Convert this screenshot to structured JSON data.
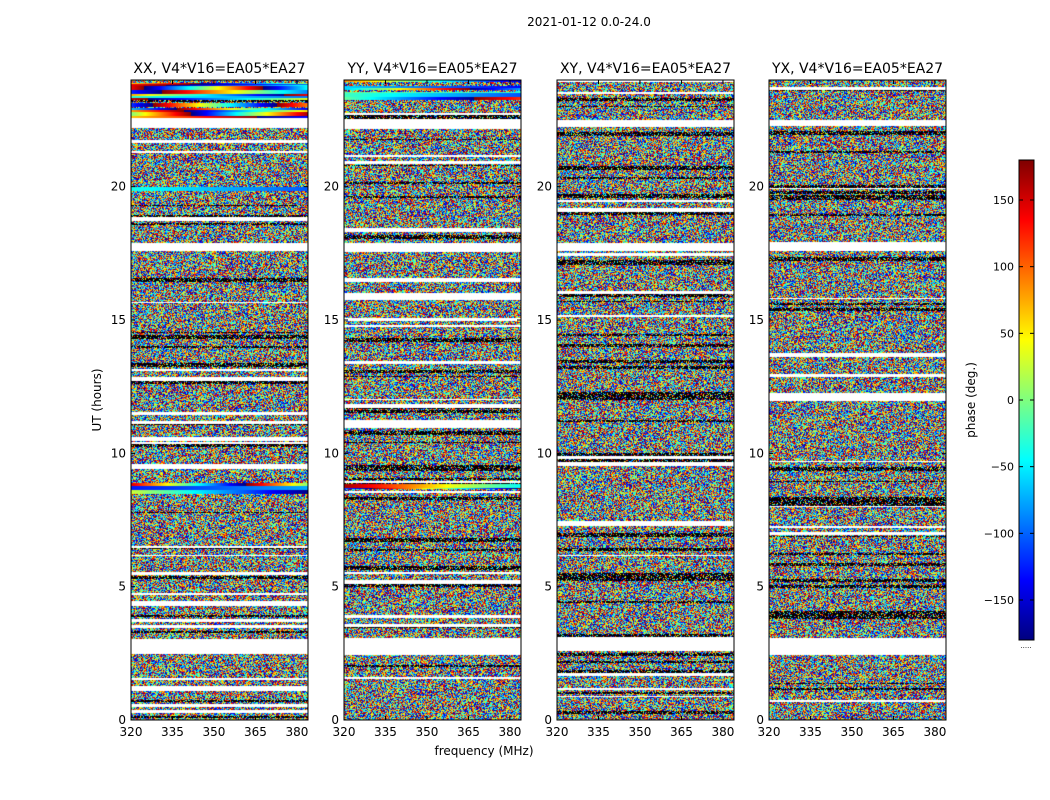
{
  "suptitle": "2021-01-12 0.0-24.0",
  "xlabel": "frequency (MHz)",
  "ylabel": "UT (hours)",
  "colorbar": {
    "label": "phase (deg.)",
    "ticks": [
      150,
      100,
      50,
      0,
      -50,
      -100,
      -150
    ],
    "tick_labels": [
      "150",
      "100",
      "50",
      "0",
      "−50",
      "−100",
      "−150"
    ],
    "range": [
      -180,
      180
    ],
    "colormap": [
      "#00007f",
      "#0000ff",
      "#007fff",
      "#00ffff",
      "#7fff7f",
      "#ffff00",
      "#ff7f00",
      "#ff0000",
      "#7f0000"
    ],
    "footnote": "....."
  },
  "chart_data": [
    {
      "type": "heatmap",
      "title": "XX, V4*V16=EA05*EA27",
      "x_ticks": [
        "320",
        "335",
        "350",
        "365",
        "380"
      ],
      "x_tick_values": [
        320,
        335,
        350,
        365,
        380
      ],
      "xlim": [
        320,
        384
      ],
      "y_ticks": [
        "0",
        "5",
        "10",
        "15",
        "20"
      ],
      "y_tick_values": [
        0,
        5,
        10,
        15,
        20
      ],
      "ylim": [
        0,
        24
      ],
      "z_label": "phase (deg.)",
      "z_range": [
        -180,
        180
      ]
    },
    {
      "type": "heatmap",
      "title": "YY, V4*V16=EA05*EA27",
      "x_ticks": [
        "320",
        "335",
        "350",
        "365",
        "380"
      ],
      "x_tick_values": [
        320,
        335,
        350,
        365,
        380
      ],
      "xlim": [
        320,
        384
      ],
      "y_ticks": [
        "0",
        "5",
        "10",
        "15",
        "20"
      ],
      "y_tick_values": [
        0,
        5,
        10,
        15,
        20
      ],
      "ylim": [
        0,
        24
      ],
      "z_label": "phase (deg.)",
      "z_range": [
        -180,
        180
      ]
    },
    {
      "type": "heatmap",
      "title": "XY, V4*V16=EA05*EA27",
      "x_ticks": [
        "320",
        "335",
        "350",
        "365",
        "380"
      ],
      "x_tick_values": [
        320,
        335,
        350,
        365,
        380
      ],
      "xlim": [
        320,
        384
      ],
      "y_ticks": [
        "0",
        "5",
        "10",
        "15",
        "20"
      ],
      "y_tick_values": [
        0,
        5,
        10,
        15,
        20
      ],
      "ylim": [
        0,
        24
      ],
      "z_label": "phase (deg.)",
      "z_range": [
        -180,
        180
      ]
    },
    {
      "type": "heatmap",
      "title": "YX, V4*V16=EA05*EA27",
      "x_ticks": [
        "320",
        "335",
        "350",
        "365",
        "380"
      ],
      "x_tick_values": [
        320,
        335,
        350,
        365,
        380
      ],
      "xlim": [
        320,
        384
      ],
      "y_ticks": [
        "0",
        "5",
        "10",
        "15",
        "20"
      ],
      "y_tick_values": [
        0,
        5,
        10,
        15,
        20
      ],
      "ylim": [
        0,
        24
      ],
      "z_label": "phase (deg.)",
      "z_range": [
        -180,
        180
      ]
    }
  ]
}
